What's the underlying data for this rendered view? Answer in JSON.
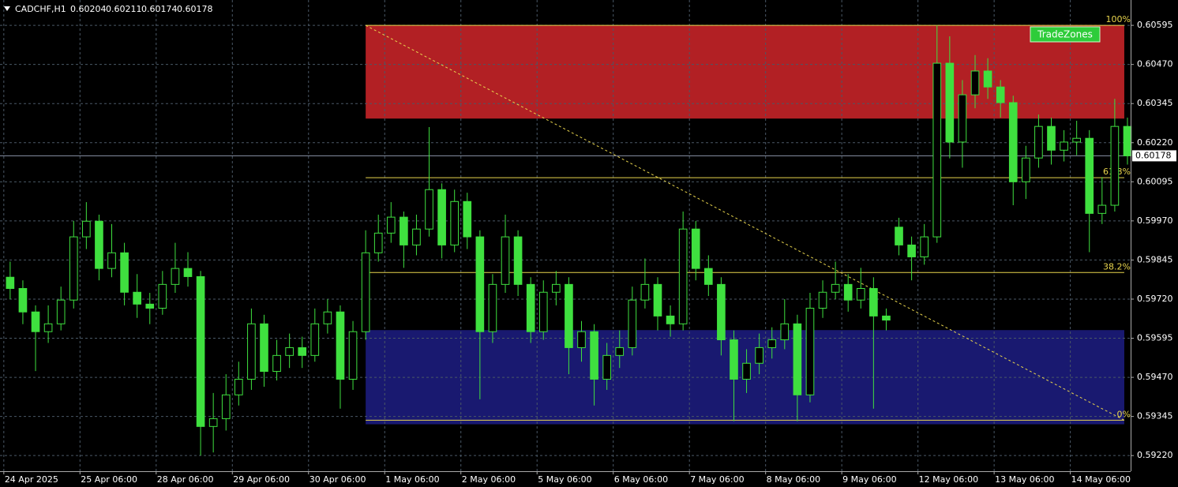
{
  "chart_data": {
    "type": "candlestick",
    "header": {
      "symbol": "CADCHF,H1",
      "quote": [
        0.60204,
        0.60211,
        0.60174,
        0.60178
      ]
    },
    "color": "#3fe03f",
    "grid": true,
    "xlim": [
      -1.2,
      355
    ],
    "ylim": [
      0.5917,
      0.60676
    ],
    "xticks": [
      {
        "value": 0,
        "label": "24 Apr 2025"
      },
      {
        "value": 24,
        "label": "25 Apr 06:00"
      },
      {
        "value": 48,
        "label": "28 Apr 06:00"
      },
      {
        "value": 72,
        "label": "29 Apr 06:00"
      },
      {
        "value": 96,
        "label": "30 Apr 06:00"
      },
      {
        "value": 120,
        "label": "1 May 06:00"
      },
      {
        "value": 144,
        "label": "2 May 06:00"
      },
      {
        "value": 168,
        "label": "5 May 06:00"
      },
      {
        "value": 192,
        "label": "6 May 06:00"
      },
      {
        "value": 216,
        "label": "7 May 06:00"
      },
      {
        "value": 240,
        "label": "8 May 06:00"
      },
      {
        "value": 264,
        "label": "9 May 06:00"
      },
      {
        "value": 288,
        "label": "12 May 06:00"
      },
      {
        "value": 312,
        "label": "13 May 06:00"
      },
      {
        "value": 336,
        "label": "14 May 06:00"
      }
    ],
    "yticks": [
      {
        "value": 0.60595,
        "label": "0.60595"
      },
      {
        "value": 0.6047,
        "label": "0.60470"
      },
      {
        "value": 0.60345,
        "label": "0.60345"
      },
      {
        "value": 0.6022,
        "label": "0.60220"
      },
      {
        "value": 0.60095,
        "label": "0.60095"
      },
      {
        "value": 0.5997,
        "label": "0.59970"
      },
      {
        "value": 0.59845,
        "label": "0.59845"
      },
      {
        "value": 0.5972,
        "label": "0.59720"
      },
      {
        "value": 0.59595,
        "label": "0.59595"
      },
      {
        "value": 0.5947,
        "label": "0.59470"
      },
      {
        "value": 0.59345,
        "label": "0.59345"
      },
      {
        "value": 0.5922,
        "label": "0.59220"
      }
    ],
    "current_price": 0.60178,
    "zones": [
      {
        "color": "#b22024",
        "x_start": 114,
        "x_end": 353,
        "low": 0.60297,
        "high": 0.60595
      },
      {
        "color": "#191970",
        "x_start": 114,
        "x_end": 353,
        "low": 0.5932,
        "high": 0.59621
      }
    ],
    "fibo": {
      "color": "#e8d44d",
      "x_start": 114,
      "x_end": 353,
      "levels": [
        {
          "price": 0.60595,
          "label": "100%"
        },
        {
          "price": 0.60108,
          "label": "61.8%"
        },
        {
          "price": 0.59805,
          "label": "38.2%"
        },
        {
          "price": 0.59333,
          "label": "0%"
        }
      ]
    },
    "button": "TradeZones",
    "x": [
      2,
      6,
      10,
      14,
      18,
      22,
      26,
      30,
      34,
      38,
      42,
      46,
      50,
      54,
      58,
      62,
      66,
      70,
      74,
      78,
      82,
      86,
      90,
      94,
      98,
      102,
      106,
      110,
      114,
      118,
      122,
      126,
      130,
      134,
      138,
      142,
      146,
      150,
      154,
      158,
      162,
      166,
      170,
      174,
      178,
      182,
      186,
      190,
      194,
      198,
      202,
      206,
      210,
      214,
      218,
      222,
      226,
      230,
      234,
      238,
      242,
      246,
      250,
      254,
      258,
      262,
      266,
      270,
      274,
      278,
      282,
      286,
      290,
      294,
      298,
      302,
      306,
      310,
      314,
      318,
      322,
      326,
      330,
      334,
      338,
      342,
      346,
      350,
      354
    ],
    "ohlc": [
      [
        0.5979,
        0.5984,
        0.5972,
        0.59754
      ],
      [
        0.59754,
        0.5978,
        0.5964,
        0.59679
      ],
      [
        0.59679,
        0.597,
        0.5949,
        0.59616
      ],
      [
        0.59616,
        0.597,
        0.5958,
        0.59641
      ],
      [
        0.59641,
        0.5976,
        0.5962,
        0.59717
      ],
      [
        0.59717,
        0.5997,
        0.5969,
        0.59919
      ],
      [
        0.59919,
        0.6003,
        0.5988,
        0.59969
      ],
      [
        0.59969,
        0.5999,
        0.5978,
        0.59818
      ],
      [
        0.59818,
        0.5996,
        0.5979,
        0.59868
      ],
      [
        0.59868,
        0.599,
        0.597,
        0.59742
      ],
      [
        0.59742,
        0.598,
        0.5966,
        0.59704
      ],
      [
        0.59704,
        0.5974,
        0.5964,
        0.59691
      ],
      [
        0.59691,
        0.5981,
        0.5967,
        0.59767
      ],
      [
        0.59767,
        0.599,
        0.5974,
        0.59818
      ],
      [
        0.59818,
        0.5987,
        0.5976,
        0.59792
      ],
      [
        0.59792,
        0.5981,
        0.5922,
        0.59313
      ],
      [
        0.59313,
        0.5942,
        0.5923,
        0.59338
      ],
      [
        0.59338,
        0.5948,
        0.593,
        0.59414
      ],
      [
        0.59414,
        0.5952,
        0.5938,
        0.59464
      ],
      [
        0.59464,
        0.5969,
        0.5943,
        0.59641
      ],
      [
        0.59641,
        0.5967,
        0.5944,
        0.59489
      ],
      [
        0.59489,
        0.5959,
        0.5946,
        0.5954
      ],
      [
        0.5954,
        0.5961,
        0.595,
        0.59565
      ],
      [
        0.59565,
        0.596,
        0.595,
        0.5954
      ],
      [
        0.5954,
        0.5969,
        0.5952,
        0.59641
      ],
      [
        0.59641,
        0.5972,
        0.5961,
        0.59679
      ],
      [
        0.59679,
        0.597,
        0.5937,
        0.59464
      ],
      [
        0.59464,
        0.5965,
        0.5943,
        0.59616
      ],
      [
        0.59616,
        0.5994,
        0.5959,
        0.59868
      ],
      [
        0.59868,
        0.5999,
        0.5984,
        0.59931
      ],
      [
        0.59931,
        0.6003,
        0.599,
        0.59982
      ],
      [
        0.59982,
        0.6,
        0.5982,
        0.59893
      ],
      [
        0.59893,
        0.5999,
        0.5986,
        0.59944
      ],
      [
        0.59944,
        0.6027,
        0.5992,
        0.6007
      ],
      [
        0.6007,
        0.6009,
        0.5985,
        0.59893
      ],
      [
        0.59893,
        0.6007,
        0.5987,
        0.60032
      ],
      [
        0.60032,
        0.6006,
        0.5988,
        0.59919
      ],
      [
        0.59919,
        0.5994,
        0.594,
        0.59616
      ],
      [
        0.59616,
        0.598,
        0.5958,
        0.59767
      ],
      [
        0.59767,
        0.5999,
        0.5974,
        0.59919
      ],
      [
        0.59919,
        0.5994,
        0.5973,
        0.59767
      ],
      [
        0.59767,
        0.5979,
        0.5958,
        0.59616
      ],
      [
        0.59616,
        0.5978,
        0.5959,
        0.59742
      ],
      [
        0.59742,
        0.5981,
        0.597,
        0.59767
      ],
      [
        0.59767,
        0.5979,
        0.5948,
        0.59565
      ],
      [
        0.59565,
        0.5965,
        0.5952,
        0.59616
      ],
      [
        0.59616,
        0.5964,
        0.5938,
        0.59464
      ],
      [
        0.59464,
        0.5958,
        0.5943,
        0.5954
      ],
      [
        0.5954,
        0.5962,
        0.595,
        0.59565
      ],
      [
        0.59565,
        0.5976,
        0.5954,
        0.59717
      ],
      [
        0.59717,
        0.5985,
        0.5969,
        0.59767
      ],
      [
        0.59767,
        0.5979,
        0.5962,
        0.59666
      ],
      [
        0.59666,
        0.597,
        0.596,
        0.59641
      ],
      [
        0.59641,
        0.6,
        0.5962,
        0.59944
      ],
      [
        0.59944,
        0.5997,
        0.5978,
        0.59818
      ],
      [
        0.59818,
        0.5986,
        0.5973,
        0.59767
      ],
      [
        0.59767,
        0.5979,
        0.5954,
        0.5959
      ],
      [
        0.5959,
        0.5962,
        0.5933,
        0.59464
      ],
      [
        0.59464,
        0.5956,
        0.5942,
        0.59515
      ],
      [
        0.59515,
        0.5961,
        0.5948,
        0.59565
      ],
      [
        0.59565,
        0.5963,
        0.5953,
        0.5959
      ],
      [
        0.5959,
        0.5972,
        0.5956,
        0.59641
      ],
      [
        0.59641,
        0.5967,
        0.5933,
        0.59414
      ],
      [
        0.59414,
        0.5974,
        0.5939,
        0.59691
      ],
      [
        0.59691,
        0.5978,
        0.5966,
        0.59742
      ],
      [
        0.59742,
        0.5984,
        0.5972,
        0.59767
      ],
      [
        0.59767,
        0.598,
        0.5968,
        0.59717
      ],
      [
        0.59717,
        0.5982,
        0.5969,
        0.59754
      ],
      [
        0.59754,
        0.5979,
        0.5937,
        0.59666
      ],
      [
        0.59666,
        0.5969,
        0.5962,
        0.59653
      ],
      [
        0.5995,
        0.5998,
        0.5986,
        0.59893
      ],
      [
        0.59893,
        0.5992,
        0.5978,
        0.59855
      ],
      [
        0.59855,
        0.5996,
        0.5983,
        0.59919
      ],
      [
        0.59919,
        0.60595,
        0.599,
        0.60474
      ],
      [
        0.60474,
        0.6056,
        0.6017,
        0.60222
      ],
      [
        0.60222,
        0.6042,
        0.6014,
        0.60373
      ],
      [
        0.60373,
        0.605,
        0.6033,
        0.60449
      ],
      [
        0.60449,
        0.6049,
        0.6036,
        0.60398
      ],
      [
        0.60398,
        0.6042,
        0.603,
        0.60348
      ],
      [
        0.60348,
        0.6037,
        0.6002,
        0.60095
      ],
      [
        0.60095,
        0.6021,
        0.6004,
        0.60171
      ],
      [
        0.60171,
        0.6031,
        0.6014,
        0.60272
      ],
      [
        0.60272,
        0.603,
        0.6015,
        0.60196
      ],
      [
        0.60196,
        0.6026,
        0.6016,
        0.60222
      ],
      [
        0.60222,
        0.6029,
        0.6018,
        0.60234
      ],
      [
        0.60234,
        0.6026,
        0.5987,
        0.59994
      ],
      [
        0.59994,
        0.6011,
        0.5996,
        0.6002
      ],
      [
        0.6002,
        0.6036,
        0.6,
        0.60272
      ],
      [
        0.60272,
        0.603,
        0.6015,
        0.60178
      ]
    ]
  }
}
